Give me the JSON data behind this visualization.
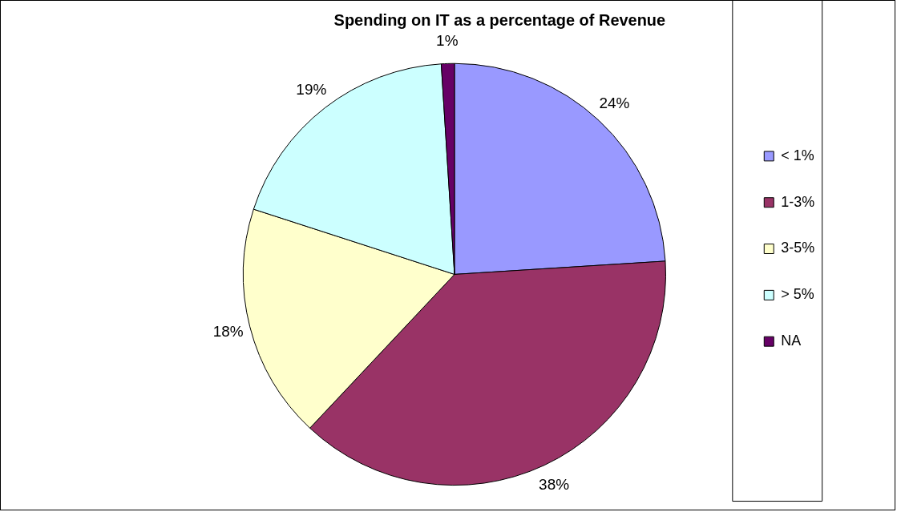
{
  "chart_data": {
    "type": "pie",
    "title": "Spending on IT as a percentage of Revenue",
    "categories": [
      "< 1%",
      "1-3%",
      "3-5%",
      "> 5%",
      "NA"
    ],
    "values": [
      24,
      38,
      18,
      19,
      1
    ],
    "colors": [
      "#9999ff",
      "#993366",
      "#ffffcc",
      "#ccffff",
      "#660066"
    ],
    "value_labels": [
      "24%",
      "38%",
      "18%",
      "19%",
      "1%"
    ],
    "legend": "right"
  }
}
